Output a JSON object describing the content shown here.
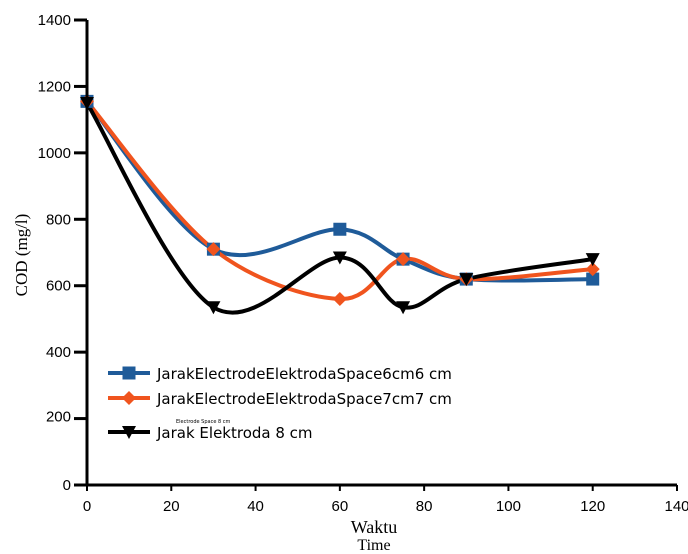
{
  "chart_data": {
    "type": "line",
    "xlabel": "Waktu",
    "xlabel_sub": "Time",
    "ylabel": "COD (mg/l)",
    "xlim": [
      0,
      140
    ],
    "ylim": [
      0,
      1400
    ],
    "x_ticks": [
      0,
      20,
      40,
      60,
      80,
      100,
      120,
      140
    ],
    "y_ticks": [
      0,
      200,
      400,
      600,
      800,
      1000,
      1200,
      1400
    ],
    "grid": false,
    "legend_position": "lower-left",
    "legend_small_note": "Electrode Space 8 cm",
    "series": [
      {
        "name": "JarakElectrodeElektrodaSpace6cm6 cm",
        "color": "#1f5b99",
        "marker": "square",
        "x": [
          0,
          30,
          60,
          75,
          90,
          120
        ],
        "y": [
          1155,
          710,
          770,
          680,
          620,
          620
        ]
      },
      {
        "name": "JarakElectrodeElektrodaSpace7cm7 cm",
        "color": "#f0541e",
        "marker": "diamond",
        "x": [
          0,
          30,
          60,
          75,
          90,
          120
        ],
        "y": [
          1155,
          710,
          560,
          680,
          620,
          650
        ]
      },
      {
        "name": "Jarak Elektroda 8 cm",
        "color": "#000000",
        "marker": "triangle-down",
        "x": [
          0,
          30,
          60,
          75,
          90,
          120
        ],
        "y": [
          1150,
          535,
          685,
          535,
          620,
          680
        ]
      }
    ]
  }
}
